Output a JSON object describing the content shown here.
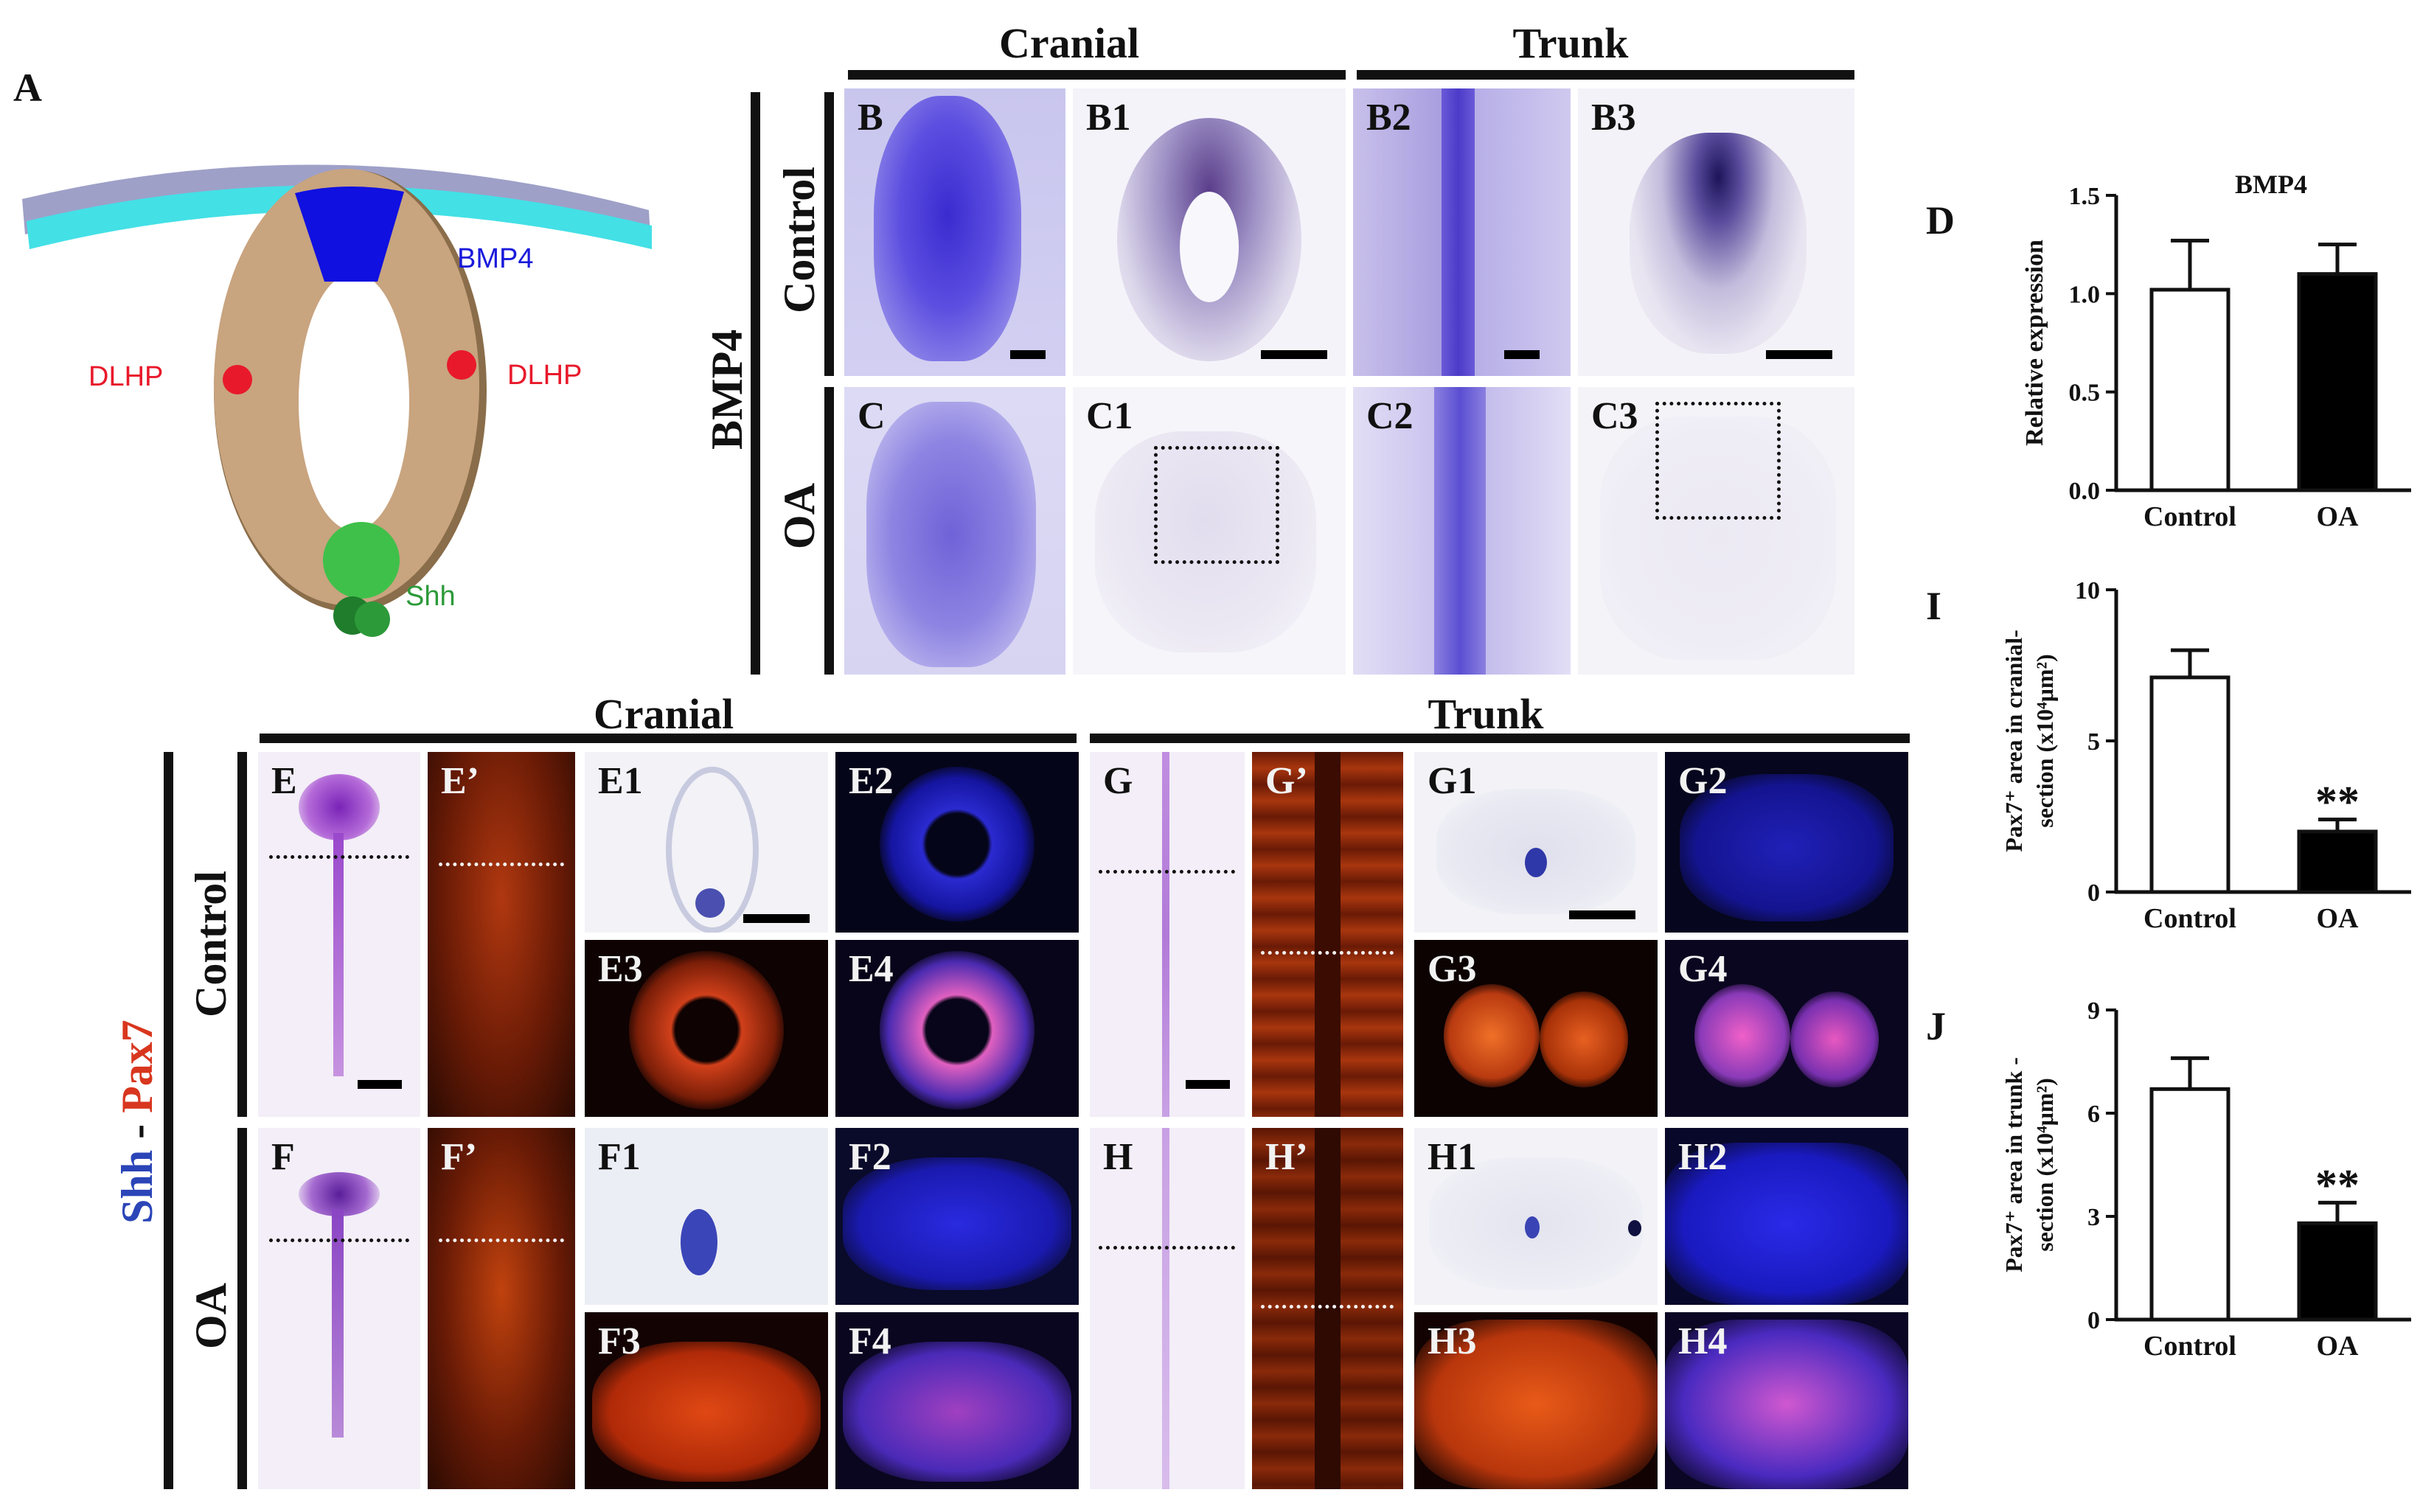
{
  "figure": {
    "panel_letters": {
      "A": "A",
      "D": "D",
      "I": "I",
      "J": "J"
    },
    "headers": {
      "cranial_top": "Cranial",
      "trunk_top": "Trunk",
      "cranial_bottom": "Cranial",
      "trunk_bottom": "Trunk"
    },
    "row_labels": {
      "gene_top": "BMP4",
      "control_top": "Control",
      "oa_top": "OA",
      "control_bottom": "Control",
      "oa_bottom": "OA"
    },
    "marker_label": {
      "shh": "Shh",
      "sep": " - ",
      "pax7": "Pax7"
    },
    "schematic": {
      "bmp4": "BMP4",
      "dlhp_left": "DLHP",
      "dlhp_right": "DLHP",
      "shh": "Shh"
    },
    "panels_top": [
      "B",
      "B1",
      "B2",
      "B3",
      "C",
      "C1",
      "C2",
      "C3"
    ],
    "panels_bottom": [
      "E",
      "E’",
      "E1",
      "E2",
      "E3",
      "E4",
      "F",
      "F’",
      "F1",
      "F2",
      "F3",
      "F4",
      "G",
      "G’",
      "G1",
      "G2",
      "G3",
      "G4",
      "H",
      "H’",
      "H1",
      "H2",
      "H3",
      "H4"
    ]
  },
  "chart_data": [
    {
      "type": "bar",
      "panel": "D",
      "title": "BMP4",
      "ylabel": "Relative expression",
      "categories": [
        "Control",
        "OA"
      ],
      "values": [
        1.02,
        1.1
      ],
      "errors": [
        0.25,
        0.15
      ],
      "fill": [
        "#ffffff",
        "#000000"
      ],
      "ylim": [
        0,
        1.5
      ],
      "yticks": [
        "0.0",
        "0.5",
        "1.0",
        "1.5"
      ],
      "significance": [
        "",
        ""
      ]
    },
    {
      "type": "bar",
      "panel": "I",
      "title": "",
      "ylabel_line1": "Pax7⁺ area in cranial-",
      "ylabel_line2": "section (x10⁴μm²)",
      "categories": [
        "Control",
        "OA"
      ],
      "values": [
        7.1,
        2.0
      ],
      "errors": [
        0.9,
        0.4
      ],
      "fill": [
        "#ffffff",
        "#000000"
      ],
      "ylim": [
        0,
        10
      ],
      "yticks": [
        "0",
        "5",
        "10"
      ],
      "significance": [
        "",
        "**"
      ]
    },
    {
      "type": "bar",
      "panel": "J",
      "title": "",
      "ylabel_line1": "Pax7⁺ area in trunk -",
      "ylabel_line2": "section (x10⁴μm²)",
      "categories": [
        "Control",
        "OA"
      ],
      "values": [
        6.7,
        2.8
      ],
      "errors": [
        0.9,
        0.6
      ],
      "fill": [
        "#ffffff",
        "#000000"
      ],
      "ylim": [
        0,
        9
      ],
      "yticks": [
        "0",
        "3",
        "6",
        "9"
      ],
      "significance": [
        "",
        "**"
      ]
    }
  ]
}
